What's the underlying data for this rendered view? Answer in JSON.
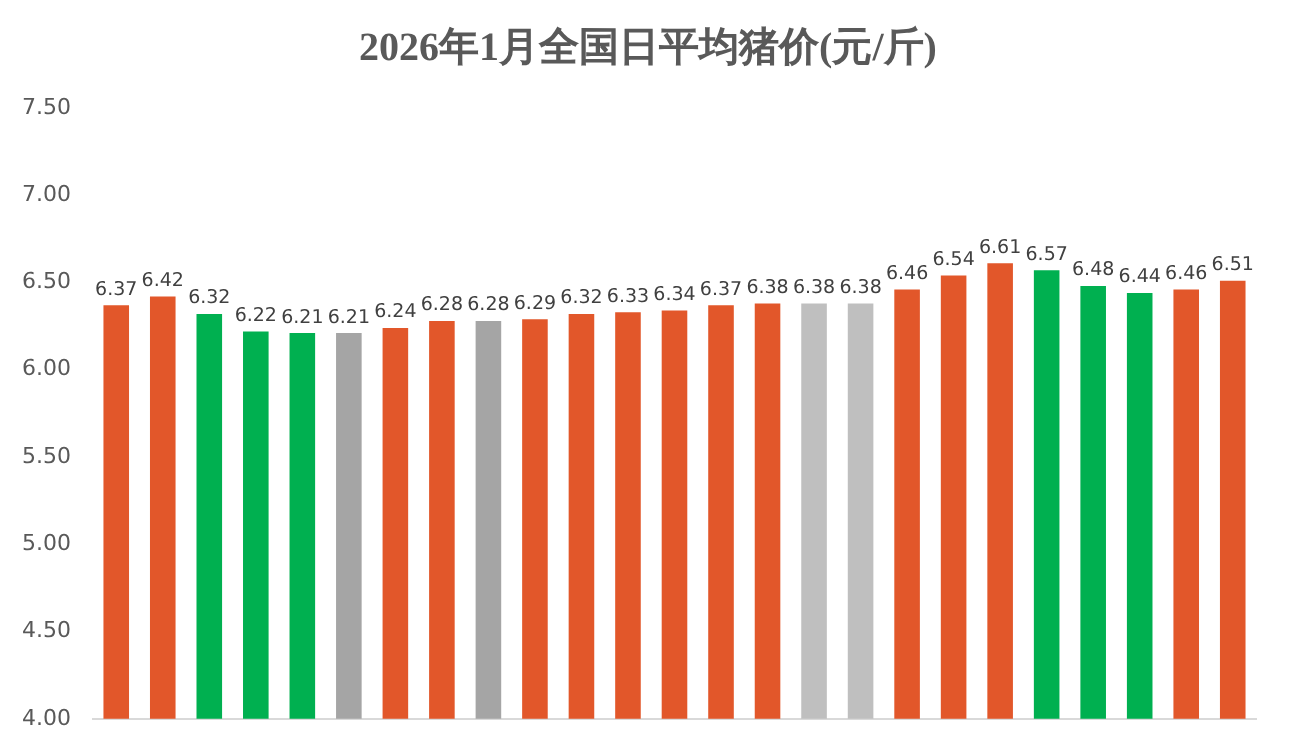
{
  "chart_data": {
    "type": "bar",
    "title": "2026年1月全国日平均猪价(元/斤)",
    "categories": [
      null,
      null,
      null,
      null,
      null,
      null,
      null,
      null,
      null,
      null,
      null,
      null,
      null,
      null,
      null,
      null,
      null,
      null,
      null,
      null,
      null,
      null,
      null,
      null,
      null
    ],
    "values": [
      6.37,
      6.42,
      6.32,
      6.22,
      6.21,
      6.21,
      6.24,
      6.28,
      6.28,
      6.29,
      6.32,
      6.33,
      6.34,
      6.37,
      6.38,
      6.38,
      6.38,
      6.46,
      6.54,
      6.61,
      6.57,
      6.48,
      6.44,
      6.46,
      6.51
    ],
    "colors": [
      "#e2572a",
      "#e2572a",
      "#00b050",
      "#00b050",
      "#00b050",
      "#a5a5a5",
      "#e2572a",
      "#e2572a",
      "#a5a5a5",
      "#e2572a",
      "#e2572a",
      "#e2572a",
      "#e2572a",
      "#e2572a",
      "#e2572a",
      "#bfbfbf",
      "#bfbfbf",
      "#e2572a",
      "#e2572a",
      "#e2572a",
      "#00b050",
      "#00b050",
      "#00b050",
      "#e2572a",
      "#e2572a"
    ],
    "ylim": [
      4,
      7.5
    ],
    "yticks": [
      {
        "value": 4,
        "label": "4.00"
      },
      {
        "value": 4.5,
        "label": "4.50"
      },
      {
        "value": 5,
        "label": "5.00"
      },
      {
        "value": 5.5,
        "label": "5.50"
      },
      {
        "value": 6,
        "label": "6.00"
      },
      {
        "value": 6.5,
        "label": "6.50"
      },
      {
        "value": 7,
        "label": "7.00"
      },
      {
        "value": 7.5,
        "label": "7.50"
      }
    ],
    "grid": false,
    "legend": false,
    "data_labels": true
  }
}
